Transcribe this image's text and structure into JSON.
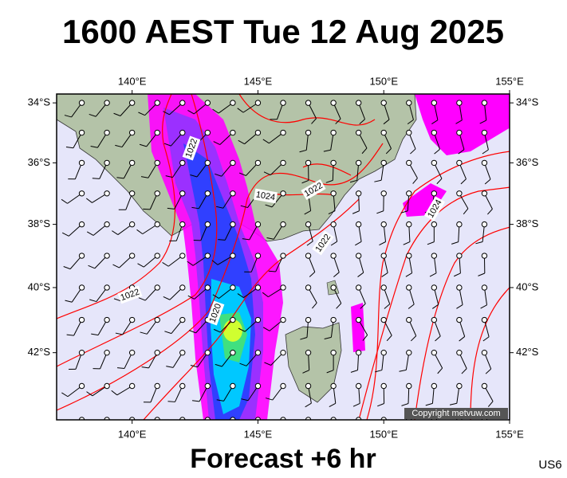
{
  "header": {
    "title": "1600 AEST Tue 12 Aug 2025"
  },
  "map": {
    "xlim": [
      137,
      155
    ],
    "ylim": [
      -44,
      -33.7
    ],
    "xticks": [
      {
        "value": 140,
        "label": "140°E"
      },
      {
        "value": 145,
        "label": "145°E"
      },
      {
        "value": 150,
        "label": "150°E"
      },
      {
        "value": 155,
        "label": "155°E"
      }
    ],
    "yticks": [
      {
        "value": -34,
        "label": "34°S"
      },
      {
        "value": -36,
        "label": "36°S"
      },
      {
        "value": -38,
        "label": "38°S"
      },
      {
        "value": -40,
        "label": "40°S"
      },
      {
        "value": -42,
        "label": "42°S"
      }
    ],
    "contour_labels": [
      "1022",
      "1024",
      "1022",
      "1022",
      "1024",
      "1022",
      "1020"
    ],
    "copyright": "Copyright metvuw.com"
  },
  "footer": {
    "forecast": "Forecast +6 hr",
    "code": "US6"
  }
}
